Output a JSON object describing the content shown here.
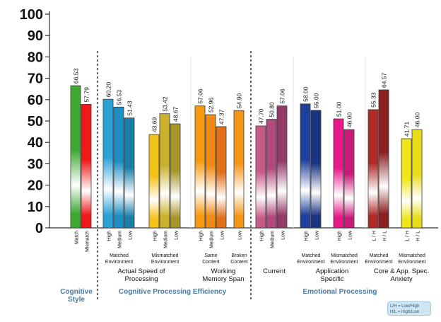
{
  "chart_data": {
    "type": "bar",
    "ylim": [
      0,
      100
    ],
    "yticks": [
      0,
      10,
      20,
      30,
      40,
      50,
      60,
      70,
      80,
      90,
      100
    ],
    "grid": false,
    "groups": [
      {
        "key": "cognitive-style",
        "bars": [
          {
            "label": "Match",
            "value": 66.53,
            "color": "#3ea832"
          },
          {
            "label": "Mismatch",
            "value": 57.79,
            "color": "#f01818"
          }
        ]
      },
      {
        "key": "speed-matched",
        "sublabel": "Matched Environment",
        "bars": [
          {
            "label": "High",
            "value": 60.2,
            "color": "#2aa3d8"
          },
          {
            "label": "Medium",
            "value": 56.53,
            "color": "#1f8ec4"
          },
          {
            "label": "Low",
            "value": 51.43,
            "color": "#1b7ea8"
          }
        ]
      },
      {
        "key": "speed-mismatched",
        "sublabel": "Mismatched Environment",
        "bars": [
          {
            "label": "High",
            "value": 43.69,
            "color": "#f5c21a"
          },
          {
            "label": "Medium",
            "value": 53.42,
            "color": "#c9b22a"
          },
          {
            "label": "Low",
            "value": 48.67,
            "color": "#a8952a"
          }
        ]
      },
      {
        "key": "memory-same",
        "sublabel": "Same Content",
        "bars": [
          {
            "label": "High",
            "value": 57.06,
            "color": "#f59a10"
          },
          {
            "label": "Medium",
            "value": 52.96,
            "color": "#f08a12"
          },
          {
            "label": "Low",
            "value": 47.37,
            "color": "#e0701a"
          }
        ]
      },
      {
        "key": "memory-broken",
        "sublabel": "Broken Content",
        "bars": [
          {
            "label": "Low",
            "value": 54.9,
            "color": "#f5961a"
          }
        ]
      },
      {
        "key": "current",
        "bars": [
          {
            "label": "High",
            "value": 47.7,
            "color": "#c85a8a"
          },
          {
            "label": "Medium",
            "value": 50.8,
            "color": "#b04a7c"
          },
          {
            "label": "Low",
            "value": 57.06,
            "color": "#923a6a"
          }
        ]
      },
      {
        "key": "app-matched",
        "sublabel": "Matched Environment",
        "bars": [
          {
            "label": "High",
            "value": 58.0,
            "color": "#1f3f9a"
          },
          {
            "label": "Low",
            "value": 55.0,
            "color": "#1a3480"
          }
        ]
      },
      {
        "key": "app-mismatched",
        "sublabel": "Mismatched Environment",
        "bars": [
          {
            "label": "High",
            "value": 51.0,
            "color": "#e8188a"
          },
          {
            "label": "Low",
            "value": 46.0,
            "color": "#c81a78"
          }
        ]
      },
      {
        "key": "anxiety-matched",
        "sublabel": "Matched Environment",
        "bars": [
          {
            "label": "L / H",
            "value": 55.33,
            "color": "#b02a2a"
          },
          {
            "label": "H / L",
            "value": 64.57,
            "color": "#8a2020"
          }
        ]
      },
      {
        "key": "anxiety-mismatched",
        "sublabel": "Mismatched Environment",
        "bars": [
          {
            "label": "L / H",
            "value": 41.71,
            "color": "#f0e61a"
          },
          {
            "label": "H / L",
            "value": 46.0,
            "color": "#e8dc18"
          }
        ]
      }
    ],
    "categories": [
      {
        "label": "Actual Speed of Processing"
      },
      {
        "label": "Working Memory Span"
      },
      {
        "label": "Current"
      },
      {
        "label": "Application Specific"
      },
      {
        "label": "Core & App. Spec. Anxiety"
      }
    ],
    "sections": [
      {
        "label": "Cognitive Style"
      },
      {
        "label": "Cognitive Processing Efficiency"
      },
      {
        "label": "Emotional Processing"
      }
    ],
    "legend": {
      "position": "bottom-right",
      "lines": [
        "L/H = Low/High",
        "H/L = High/Low"
      ]
    }
  }
}
